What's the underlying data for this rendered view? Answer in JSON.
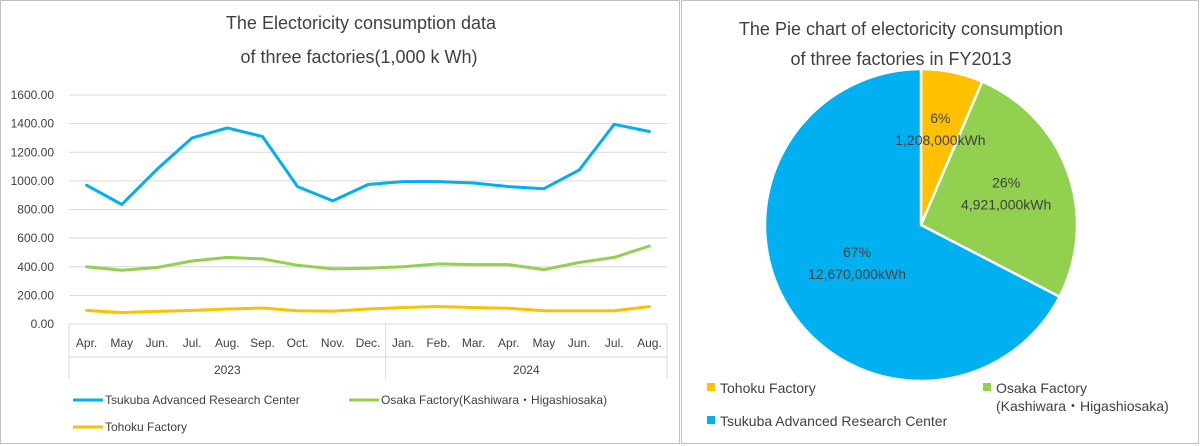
{
  "chart_data": [
    {
      "type": "line",
      "title_lines": [
        "The Electoricity consumption data",
        "of three factories(1,000 k Wh)"
      ],
      "categories": [
        "Apr.",
        "May",
        "Jun.",
        "Jul.",
        "Aug.",
        "Sep.",
        "Oct.",
        "Nov.",
        "Dec.",
        "Jan.",
        "Feb.",
        "Mar.",
        "Apr.",
        "May",
        "Jun.",
        "Jul.",
        "Aug."
      ],
      "category_groups": [
        {
          "label": "2023",
          "start": 0,
          "end": 8
        },
        {
          "label": "2024",
          "start": 9,
          "end": 16
        }
      ],
      "yticks": [
        "0.00",
        "200.00",
        "400.00",
        "600.00",
        "800.00",
        "1000.00",
        "1200.00",
        "1400.00",
        "1600.00"
      ],
      "ylim": [
        0,
        1600
      ],
      "grid": true,
      "legend_position": "bottom",
      "series": [
        {
          "name": "Tsukuba Advanced Research Center",
          "color": "#00b0f0",
          "values": [
            970,
            835,
            1080,
            1300,
            1370,
            1310,
            960,
            860,
            975,
            995,
            995,
            985,
            960,
            945,
            1075,
            1395,
            1345
          ]
        },
        {
          "name": "Osaka Factory(Kashiwara・Higashiosaka)",
          "color": "#92d050",
          "values": [
            400,
            375,
            395,
            440,
            465,
            455,
            410,
            385,
            390,
            400,
            420,
            415,
            415,
            380,
            430,
            465,
            545
          ]
        },
        {
          "name": "Tohoku Factory",
          "color": "#ffc000",
          "values": [
            95,
            80,
            88,
            95,
            105,
            112,
            92,
            90,
            105,
            115,
            122,
            115,
            110,
            92,
            92,
            92,
            122
          ]
        }
      ]
    },
    {
      "type": "pie",
      "title_lines": [
        "The Pie chart of electoricity consumption",
        "of three factories in FY2013"
      ],
      "slices": [
        {
          "name": "Tohoku Factory",
          "legend_lines": [
            "Tohoku Factory"
          ],
          "value": 1208000,
          "percent_label": "6%",
          "value_label": "1,208,000kWh",
          "color": "#ffc000"
        },
        {
          "name": "Osaka Factory(Kashiwara・Higashiosaka)",
          "legend_lines": [
            "Osaka Factory",
            "(Kashiwara・Higashiosaka)"
          ],
          "value": 4921000,
          "percent_label": "26%",
          "value_label": "4,921,000kWh",
          "color": "#92d050"
        },
        {
          "name": "Tsukuba Advanced Research Center",
          "legend_lines": [
            "Tsukuba Advanced Research Center"
          ],
          "value": 12670000,
          "percent_label": "67%",
          "value_label": "12,670,000kWh",
          "color": "#00b0f0"
        }
      ],
      "legend_position": "bottom"
    }
  ]
}
